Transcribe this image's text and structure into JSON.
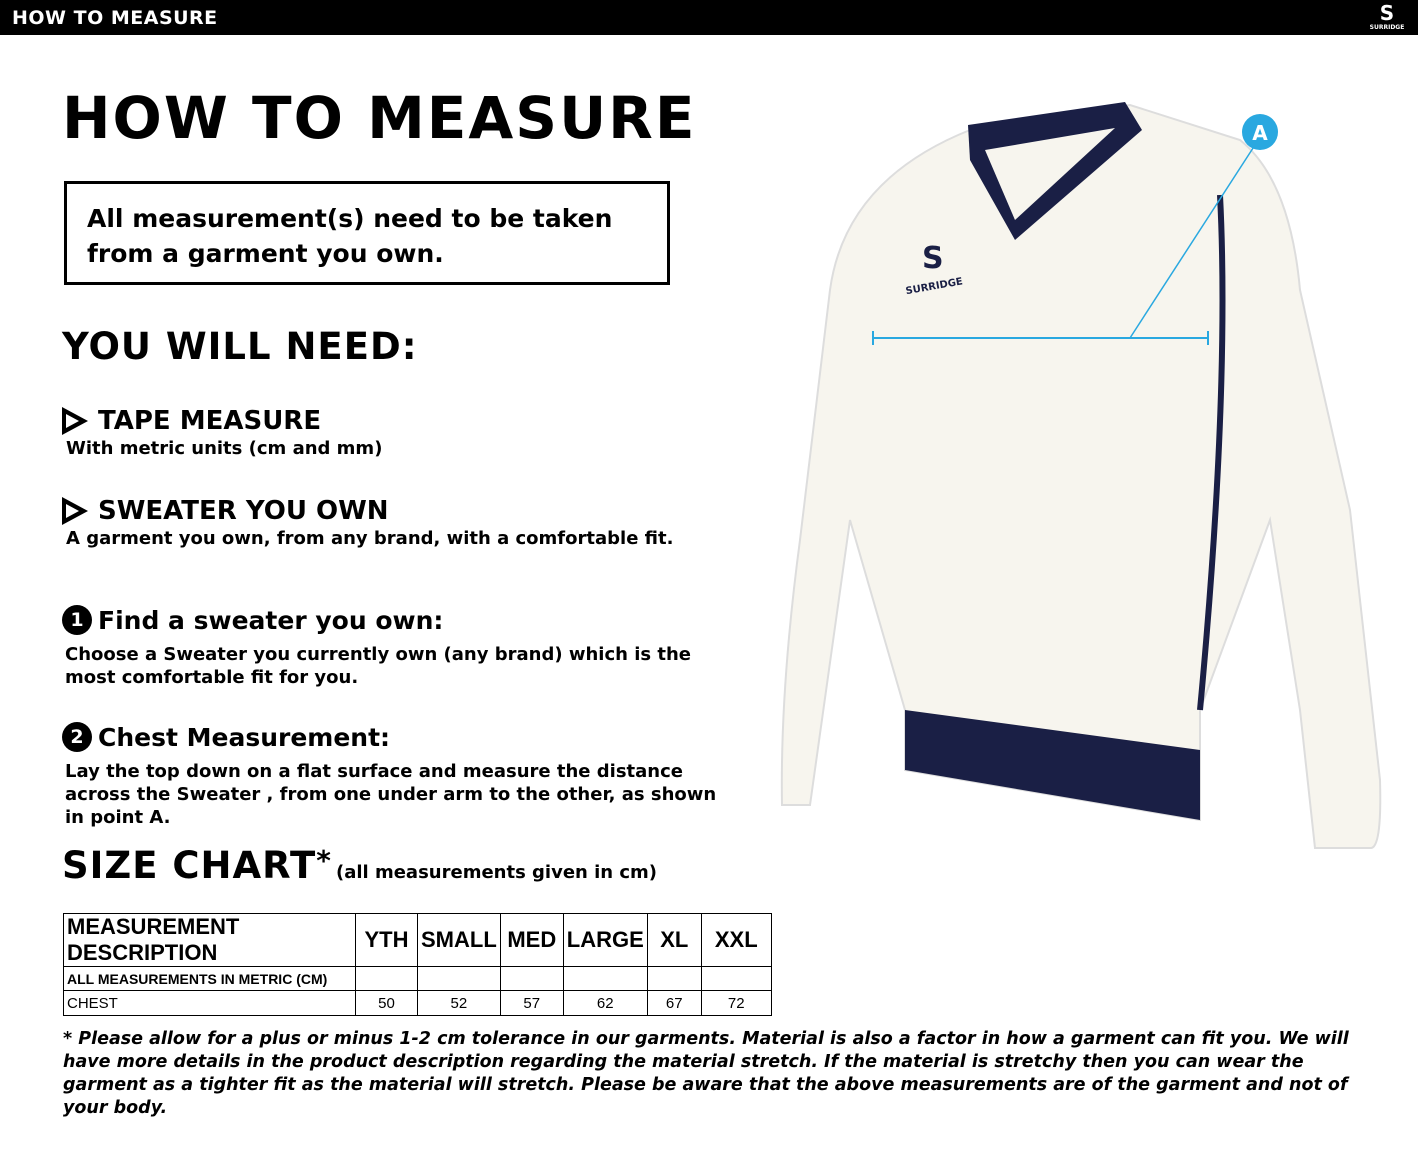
{
  "header": {
    "title": "HOW TO MEASURE",
    "brand": "SURRIDGE"
  },
  "page_title": "HOW TO MEASURE",
  "note": "All measurement(s) need to be taken from a garment you own.",
  "need_heading": "YOU WILL NEED:",
  "needs": [
    {
      "title": "TAPE MEASURE",
      "desc": "With metric units (cm and mm)"
    },
    {
      "title": "SWEATER YOU OWN",
      "desc": "A garment you own, from any brand, with a comfortable fit."
    }
  ],
  "steps": [
    {
      "num": "1",
      "title": "Find a sweater you own:",
      "desc": "Choose a Sweater you currently own (any brand) which is the most comfortable fit for you."
    },
    {
      "num": "2",
      "title": "Chest Measurement:",
      "desc": "Lay the top down on a flat surface and measure the distance across the Sweater , from one under arm to the other, as shown in point A."
    }
  ],
  "size_chart": {
    "title": "SIZE CHART",
    "asterisk": "*",
    "note": "(all measurements given in cm)",
    "headers": [
      "MEASUREMENT DESCRIPTION",
      "YTH",
      "SMALL",
      "MED",
      "LARGE",
      "XL",
      "XXL"
    ],
    "subheader": "ALL MEASUREMENTS IN METRIC (CM)",
    "rows": [
      {
        "label": "CHEST",
        "values": [
          "50",
          "52",
          "57",
          "62",
          "67",
          "72"
        ]
      }
    ]
  },
  "footnote": "* Please allow for a plus or minus 1-2 cm tolerance in our garments. Material is also a factor in how a garment can fit you. We will have more details in the product description regarding the material stretch.  If the material is stretchy then you can wear the garment as a tighter fit as the material will stretch.  Please be aware that the above measurements are of the garment and not of your body.",
  "illustration": {
    "point_label": "A",
    "garment_brand": "SURRIDGE",
    "accent": "#29a8e0",
    "trim": "#1a1f45",
    "body": "#f7f5ee"
  }
}
